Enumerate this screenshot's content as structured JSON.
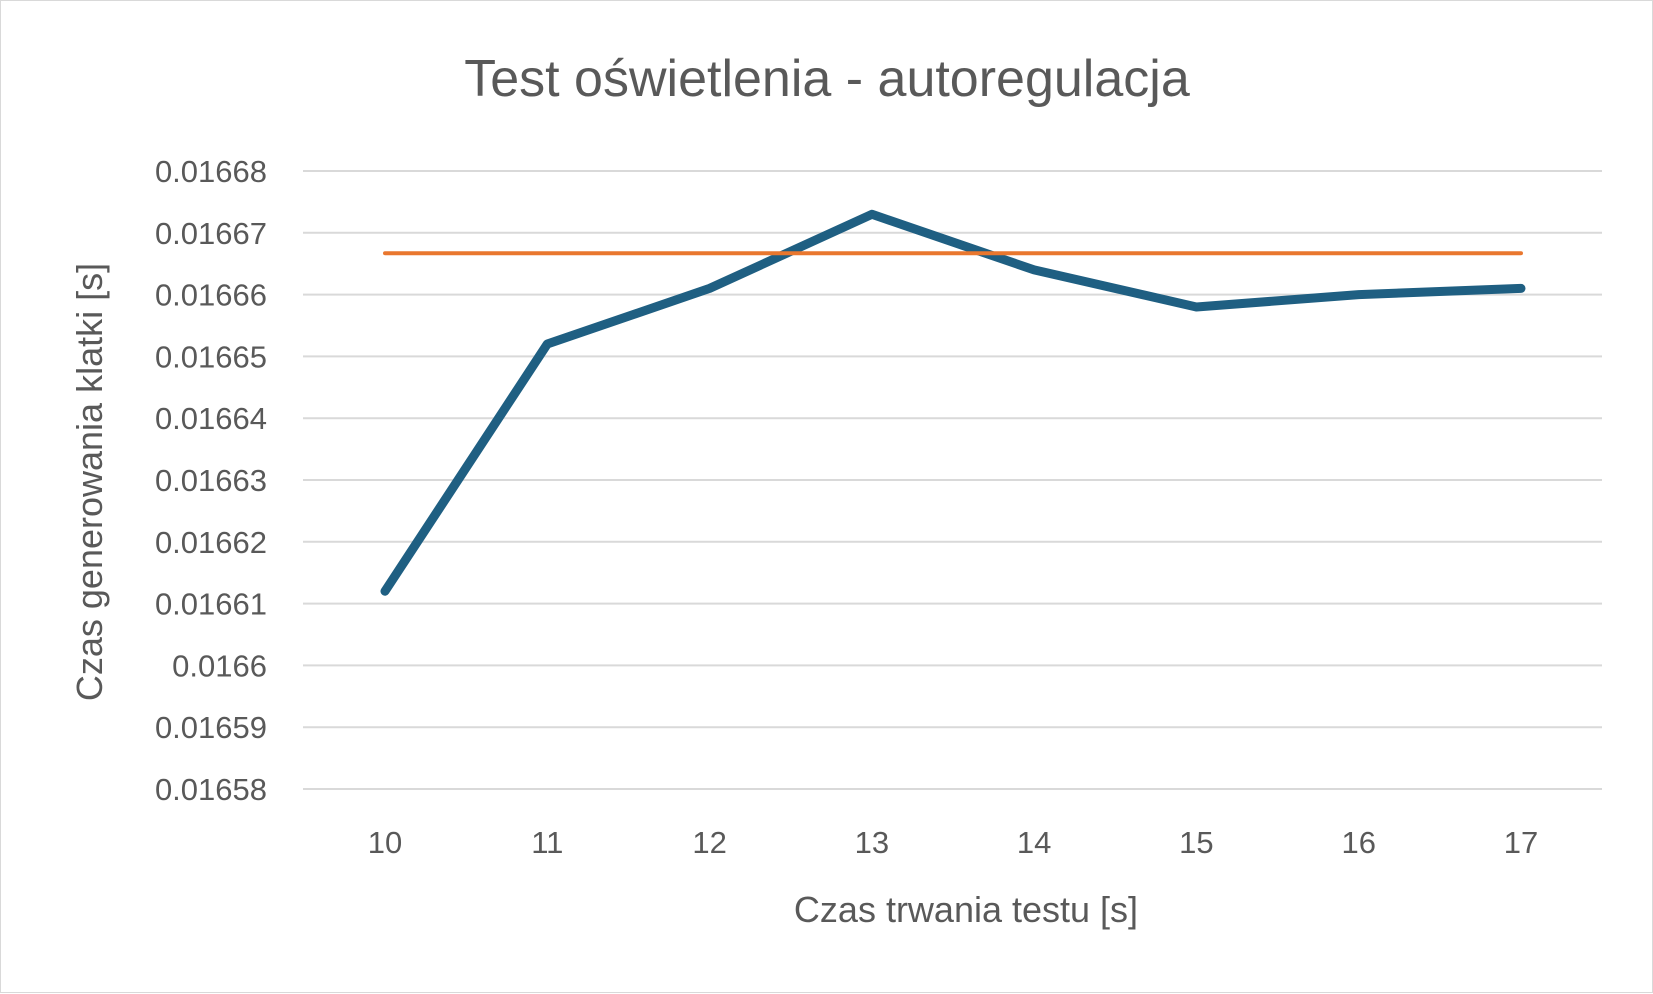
{
  "chart_data": {
    "type": "line",
    "title": "Test oświetlenia - autoregulacja",
    "xlabel": "Czas trwania testu [s]",
    "ylabel": "Czas generowania klatki [s]",
    "categories": [
      "10",
      "11",
      "12",
      "13",
      "14",
      "15",
      "16",
      "17"
    ],
    "yticks": [
      "0.01658",
      "0.01659",
      "0.0166",
      "0.01661",
      "0.01662",
      "0.01663",
      "0.01664",
      "0.01665",
      "0.01666",
      "0.01667",
      "0.01668"
    ],
    "ylim": [
      0.01658,
      0.01668
    ],
    "grid": true,
    "legend": "none",
    "series": [
      {
        "color": "#1f5f82",
        "values": [
          0.016612,
          0.016652,
          0.016661,
          0.016673,
          0.016664,
          0.016658,
          0.01666,
          0.016661
        ]
      },
      {
        "color": "#e9772e",
        "values": [
          0.0166667,
          0.0166667,
          0.0166667,
          0.0166667,
          0.0166667,
          0.0166667,
          0.0166667,
          0.0166667
        ]
      }
    ]
  }
}
